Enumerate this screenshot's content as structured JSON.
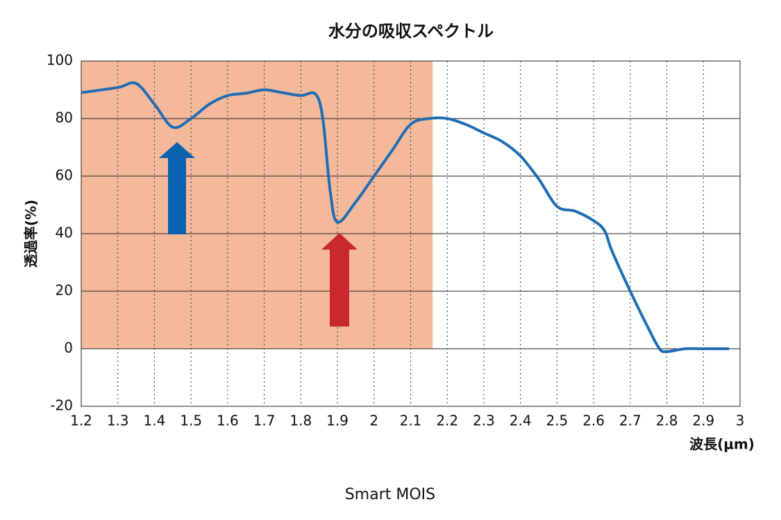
{
  "chart_data": {
    "type": "line",
    "title": "水分の吸収スペクトル",
    "x_label": "波長(μm)",
    "y_label": "透過率(%)",
    "footer": "Smart MOIS",
    "x": [
      1.2,
      1.3,
      1.35,
      1.4,
      1.45,
      1.5,
      1.55,
      1.6,
      1.65,
      1.7,
      1.75,
      1.8,
      1.84,
      1.86,
      1.88,
      1.9,
      1.95,
      2.0,
      2.05,
      2.1,
      2.15,
      2.2,
      2.25,
      2.3,
      2.35,
      2.4,
      2.45,
      2.5,
      2.55,
      2.6,
      2.63,
      2.65,
      2.7,
      2.75,
      2.78,
      2.8,
      2.85,
      2.9,
      2.97
    ],
    "series": [
      {
        "color": "#1f6db5",
        "values": [
          89,
          90.8,
          92.2,
          85,
          77,
          80,
          85,
          88,
          88.8,
          90,
          89,
          88,
          88.5,
          80,
          55,
          44,
          51,
          60,
          69,
          78,
          80,
          80,
          78,
          75,
          72,
          67,
          59,
          49.5,
          47.8,
          44.5,
          41,
          34,
          20,
          7,
          0,
          -1,
          0,
          0,
          0
        ]
      }
    ],
    "highlight_range": [
      1.2,
      2.16
    ],
    "highlight_color": "#f4b99a",
    "xlim": [
      1.2,
      3
    ],
    "xticks": [
      1.2,
      1.3,
      1.4,
      1.5,
      1.6,
      1.7,
      1.8,
      1.9,
      2,
      2.1,
      2.2,
      2.3,
      2.4,
      2.5,
      2.6,
      2.7,
      2.8,
      2.9,
      3
    ],
    "ylim": [
      -20,
      100
    ],
    "yticks": [
      -20,
      0,
      20,
      40,
      60,
      80,
      100
    ],
    "grid": true
  }
}
